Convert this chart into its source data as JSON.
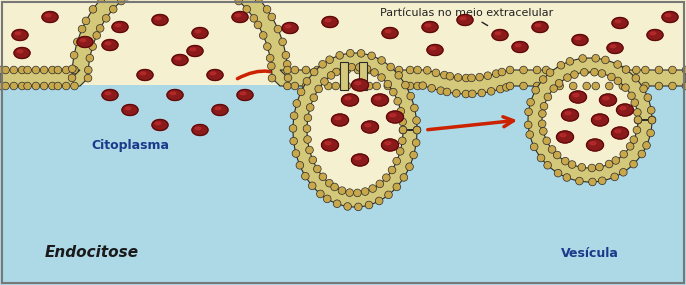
{
  "bg_color": "#add8e6",
  "membrane_color": "#2b2b2b",
  "membrane_fill": "#d4c87a",
  "cytoplasm_color": "#f5f0d0",
  "extracellular_color": "#f5f0d0",
  "particle_color": "#8b1a1a",
  "particle_edge": "#5a0a0a",
  "arrow_color": "#cc2200",
  "title_endocitose": "Endocitose",
  "title_vesicula": "Vesícula",
  "title_citoplasma": "Citoplasma",
  "label_particulas": "Partículas no meio extracelular",
  "border_color": "#555555",
  "head_color": "#c8a84b"
}
